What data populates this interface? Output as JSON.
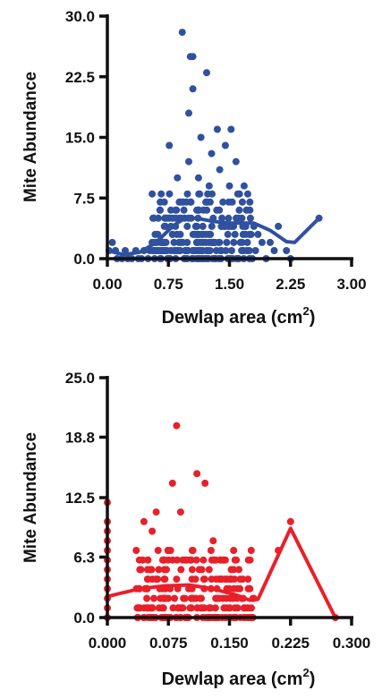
{
  "chart_data": [
    {
      "type": "scatter",
      "title": "",
      "xlabel": "Dewlap area (cm",
      "xlabel_sup": "2",
      "xlabel_close": ")",
      "ylabel": "Mite Abundance",
      "xlim": [
        0,
        3.0
      ],
      "ylim": [
        0,
        30.0
      ],
      "xticks": [
        "0.00",
        "0.75",
        "1.50",
        "2.25",
        "3.00"
      ],
      "yticks": [
        "0.0",
        "7.5",
        "15.0",
        "22.5",
        "30.0"
      ],
      "xtick_values": [
        0,
        0.75,
        1.5,
        2.25,
        3.0
      ],
      "ytick_values": [
        0,
        7.5,
        15.0,
        22.5,
        30.0
      ],
      "grid": false,
      "color": "#3050a0",
      "series": [
        {
          "points": [
            [
              0.02,
              1
            ],
            [
              0.06,
              2
            ],
            [
              0.1,
              1
            ],
            [
              0.12,
              0
            ],
            [
              0.18,
              0
            ],
            [
              0.22,
              1
            ],
            [
              0.25,
              0
            ],
            [
              0.3,
              0
            ],
            [
              0.35,
              1
            ],
            [
              0.38,
              0
            ],
            [
              0.42,
              0
            ],
            [
              0.45,
              1
            ],
            [
              0.5,
              0
            ],
            [
              0.52,
              1
            ],
            [
              0.55,
              8
            ],
            [
              0.6,
              1
            ],
            [
              0.62,
              3
            ],
            [
              0.65,
              2
            ],
            [
              0.68,
              1
            ],
            [
              0.7,
              4
            ],
            [
              0.72,
              2
            ],
            [
              0.74,
              0
            ],
            [
              0.76,
              14
            ],
            [
              0.78,
              6
            ],
            [
              0.8,
              3
            ],
            [
              0.82,
              1
            ],
            [
              0.84,
              0
            ],
            [
              0.86,
              10
            ],
            [
              0.88,
              2
            ],
            [
              0.9,
              7
            ],
            [
              0.92,
              28
            ],
            [
              0.95,
              5
            ],
            [
              0.98,
              0
            ],
            [
              1.0,
              18
            ],
            [
              1.02,
              25
            ],
            [
              1.05,
              25
            ],
            [
              1.0,
              12
            ],
            [
              1.05,
              21
            ],
            [
              1.1,
              4
            ],
            [
              1.12,
              10
            ],
            [
              1.15,
              15
            ],
            [
              1.18,
              6
            ],
            [
              1.2,
              0
            ],
            [
              1.22,
              23
            ],
            [
              1.25,
              9
            ],
            [
              1.28,
              13
            ],
            [
              1.3,
              5
            ],
            [
              1.32,
              2
            ],
            [
              1.35,
              16
            ],
            [
              1.38,
              11
            ],
            [
              1.4,
              1
            ],
            [
              1.42,
              7
            ],
            [
              1.45,
              14
            ],
            [
              1.48,
              3
            ],
            [
              1.5,
              9
            ],
            [
              1.52,
              16
            ],
            [
              1.55,
              4
            ],
            [
              1.58,
              12
            ],
            [
              1.6,
              0
            ],
            [
              1.62,
              6
            ],
            [
              1.65,
              1
            ],
            [
              1.68,
              9
            ],
            [
              1.7,
              3
            ],
            [
              1.72,
              2
            ],
            [
              1.75,
              7
            ],
            [
              1.78,
              0
            ],
            [
              1.8,
              4
            ],
            [
              1.82,
              1
            ],
            [
              1.85,
              3
            ],
            [
              1.9,
              2
            ],
            [
              1.95,
              0
            ],
            [
              2.0,
              2
            ],
            [
              2.05,
              1
            ],
            [
              2.1,
              4
            ],
            [
              2.2,
              1
            ],
            [
              2.25,
              0
            ],
            [
              2.6,
              5
            ]
          ],
          "dense_x": [
            0.55,
            1.8
          ],
          "dense_y": [
            0,
            8
          ]
        }
      ],
      "smooth_line": [
        [
          0,
          1
        ],
        [
          0.2,
          0.5
        ],
        [
          0.4,
          0.8
        ],
        [
          0.6,
          2
        ],
        [
          0.8,
          4
        ],
        [
          0.95,
          5
        ],
        [
          1.1,
          5
        ],
        [
          1.3,
          4.6
        ],
        [
          1.5,
          4.4
        ],
        [
          1.8,
          4.4
        ],
        [
          2.0,
          3.5
        ],
        [
          2.2,
          2.1
        ],
        [
          2.3,
          2
        ],
        [
          2.6,
          5
        ]
      ]
    },
    {
      "type": "scatter",
      "title": "",
      "xlabel": "Dewlap area (cm",
      "xlabel_sup": "2",
      "xlabel_close": ")",
      "ylabel": "Mite Abundance",
      "xlim": [
        0,
        0.3
      ],
      "ylim": [
        0,
        25.0
      ],
      "xticks": [
        "0.000",
        "0.075",
        "0.150",
        "0.225",
        "0.300"
      ],
      "yticks": [
        "0.0",
        "6.3",
        "12.5",
        "18.8",
        "25.0"
      ],
      "xtick_values": [
        0,
        0.075,
        0.15,
        0.225,
        0.3
      ],
      "ytick_values": [
        0,
        6.3,
        12.5,
        18.8,
        25.0
      ],
      "grid": false,
      "color": "#e8202a",
      "series": [
        {
          "points": [
            [
              0,
              12
            ],
            [
              0,
              10
            ],
            [
              0,
              9
            ],
            [
              0,
              8
            ],
            [
              0,
              7
            ],
            [
              0,
              6
            ],
            [
              0,
              5
            ],
            [
              0,
              4
            ],
            [
              0,
              3
            ],
            [
              0,
              2
            ],
            [
              0,
              1
            ],
            [
              0,
              0
            ],
            [
              0.04,
              1
            ],
            [
              0.045,
              10
            ],
            [
              0.05,
              4
            ],
            [
              0.055,
              9
            ],
            [
              0.06,
              11
            ],
            [
              0.065,
              2
            ],
            [
              0.07,
              5
            ],
            [
              0.075,
              0
            ],
            [
              0.08,
              14
            ],
            [
              0.085,
              20
            ],
            [
              0.09,
              11
            ],
            [
              0.095,
              6
            ],
            [
              0.1,
              3
            ],
            [
              0.105,
              7
            ],
            [
              0.11,
              15
            ],
            [
              0.115,
              1
            ],
            [
              0.12,
              14
            ],
            [
              0.125,
              5
            ],
            [
              0.13,
              8
            ],
            [
              0.135,
              2
            ],
            [
              0.14,
              4
            ],
            [
              0.145,
              6
            ],
            [
              0.15,
              3
            ],
            [
              0.155,
              5
            ],
            [
              0.16,
              1
            ],
            [
              0.165,
              2
            ],
            [
              0.17,
              0
            ],
            [
              0.175,
              3
            ],
            [
              0.18,
              2
            ],
            [
              0.21,
              7
            ],
            [
              0.225,
              10
            ],
            [
              0.28,
              0
            ]
          ],
          "dense_x": [
            0.035,
            0.18
          ],
          "dense_y": [
            0,
            7
          ]
        }
      ],
      "smooth_line": [
        [
          0,
          2.2
        ],
        [
          0.04,
          3.0
        ],
        [
          0.07,
          3.3
        ],
        [
          0.1,
          3.4
        ],
        [
          0.13,
          3.0
        ],
        [
          0.16,
          2.3
        ],
        [
          0.175,
          1.8
        ],
        [
          0.185,
          1.9
        ],
        [
          0.225,
          9.3
        ],
        [
          0.28,
          0
        ]
      ]
    }
  ]
}
